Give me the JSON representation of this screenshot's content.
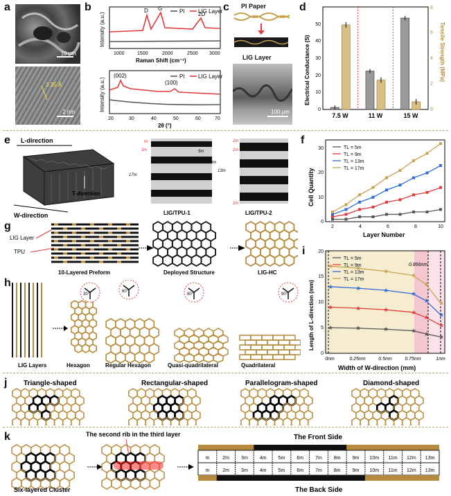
{
  "colors": {
    "gold": "#b68a3a",
    "red": "#e03a3a",
    "gray": "#555555",
    "blue": "#2e6bd6",
    "black": "#111111"
  },
  "panel_a": {
    "letter": "a",
    "scale_top": "10 μm",
    "scale_bottom": "2 nm",
    "lattice": "3.35 Å"
  },
  "panel_b": {
    "letter": "b",
    "raman": {
      "legend": [
        "PI",
        "LIG Layer"
      ],
      "peaks": [
        "D",
        "G",
        "2D"
      ],
      "ylabel": "Intensity (a.u.)",
      "xlabel": "Raman Shift (cm⁻¹)",
      "xticks": [
        "1000",
        "1500",
        "2000",
        "2500",
        "3000"
      ]
    },
    "xrd": {
      "legend": [
        "PI",
        "LIG Layer"
      ],
      "peaks": [
        "(002)",
        "(100)"
      ],
      "ylabel": "Intensity (a.u.)",
      "xlabel": "2θ (°)",
      "xticks": [
        "20",
        "30",
        "40",
        "50",
        "60",
        "70"
      ]
    }
  },
  "panel_c": {
    "letter": "c",
    "top": "PI Paper",
    "bottom": "LIG Layer",
    "scale": "100 μm"
  },
  "panel_d": {
    "letter": "d",
    "ylabel_left": "Electrical Conductance (S)",
    "ylabel_right": "Tensile Strength (MPa)",
    "yticks_left": [
      "0",
      "10",
      "20",
      "30",
      "40",
      "50"
    ],
    "yticks_right": [
      "0",
      "2",
      "4",
      "6",
      "8"
    ]
  },
  "chart_data": {
    "type": "bar",
    "categories": [
      "7.5 W",
      "11 W",
      "15 W"
    ],
    "series": [
      {
        "name": "Electrical Conductance",
        "values": [
          1.2,
          22.5,
          53.5
        ],
        "axis": "left"
      },
      {
        "name": "Tensile Strength",
        "values": [
          6.6,
          2.3,
          0.6
        ],
        "axis": "right"
      }
    ],
    "ylabel": "Electrical Conductance (S)",
    "ylabel_right": "Tensile Strength (MPa)",
    "ylim": [
      0,
      60
    ],
    "ylim_right": [
      0,
      8
    ]
  },
  "panel_e": {
    "letter": "e",
    "l_dir": "L-direction",
    "w_dir": "W-direction",
    "t_dir": "T-direction",
    "tpu1": "LIG/TPU-1",
    "tpu2": "LIG/TPU-2",
    "dims1": [
      "m",
      "3m",
      "5m",
      "9m",
      "13m",
      "17m"
    ],
    "dims2": [
      "2m",
      "2m",
      "2m"
    ]
  },
  "panel_f": {
    "letter": "f",
    "ylabel": "Cell Quantity",
    "xlabel": "Layer Number",
    "xticks": [
      "2",
      "4",
      "6",
      "8",
      "10"
    ],
    "yticks": [
      "0",
      "10",
      "20",
      "30"
    ],
    "x": [
      2,
      3,
      4,
      5,
      6,
      7,
      8,
      9,
      10
    ],
    "series": [
      {
        "name": "TL = 5m",
        "color": "#555555",
        "marker": "square",
        "values": [
          1,
          1,
          2,
          2,
          3,
          3,
          4,
          4,
          5
        ]
      },
      {
        "name": "TL = 9m",
        "color": "#e03a3a",
        "marker": "square",
        "values": [
          2,
          3,
          5,
          6,
          8,
          9,
          11,
          12,
          14
        ]
      },
      {
        "name": "TL = 13m",
        "color": "#2e6bd6",
        "marker": "square",
        "values": [
          3,
          5,
          8,
          10,
          13,
          15,
          18,
          20,
          23
        ]
      },
      {
        "name": "TL = 17m",
        "color": "#c8a050",
        "marker": "square",
        "values": [
          4,
          7,
          11,
          14,
          18,
          21,
          25,
          28,
          32
        ]
      }
    ]
  },
  "panel_g": {
    "letter": "g",
    "lig": "LIG Layer",
    "tpu": "TPU",
    "cap1": "10-Layered Preform",
    "cap2": "Deployed Structure",
    "cap3": "LIG-HC"
  },
  "panel_h": {
    "letter": "h",
    "caps": [
      "LIG Layers",
      "Hexagon",
      "Regular Hexagon",
      "Quasi-quadrilateral",
      "Quadrilateral"
    ],
    "angles": [
      "30°",
      "60°",
      "80°",
      "90°"
    ]
  },
  "panel_i": {
    "letter": "i",
    "ylabel": "Length of L-direction (mm)",
    "xlabel": "Width of W-direction (mm)",
    "xticks": [
      "0nm",
      "0.25nm",
      "0.5nm",
      "0.75nm",
      "1nm"
    ],
    "yticks": [
      "0",
      "5",
      "10",
      "15",
      "20"
    ],
    "marker_label": "0.866nm",
    "x": [
      0,
      0.25,
      0.5,
      0.75,
      0.866,
      1.0
    ],
    "series": [
      {
        "name": "TL = 5m",
        "color": "#555555",
        "values": [
          5,
          4.9,
          4.7,
          4.4,
          3.8,
          3.2
        ]
      },
      {
        "name": "TL = 9m",
        "color": "#e03a3a",
        "values": [
          9,
          8.8,
          8.5,
          8,
          7,
          5.5
        ]
      },
      {
        "name": "TL = 13m",
        "color": "#2e6bd6",
        "values": [
          13,
          12.7,
          12.3,
          11.6,
          10.3,
          7.5
        ]
      },
      {
        "name": "TL = 17m",
        "color": "#c8a050",
        "values": [
          17,
          16.6,
          16,
          15.2,
          13.5,
          9.8
        ]
      }
    ]
  },
  "panel_j": {
    "letter": "j",
    "shapes": [
      "Triangle-shaped",
      "Rectangular-shaped",
      "Parallelogram-shaped",
      "Diamond-shaped"
    ]
  },
  "panel_k": {
    "letter": "k",
    "rib_label": "The second rib in the third layer",
    "cluster": "Six-layered Cluster",
    "front": "The Front Side",
    "back": "The Back Side",
    "top_cells": [
      "m",
      "2m",
      "3m",
      "4m",
      "5m",
      "6m",
      "7m",
      "8m",
      "9m",
      "10m",
      "11m",
      "12m",
      "13m"
    ],
    "bottom_cells": [
      "m",
      "2m",
      "3m",
      "4m",
      "5m",
      "6m",
      "7m",
      "8m",
      "9m",
      "10m",
      "11m",
      "12m",
      "13m"
    ]
  }
}
